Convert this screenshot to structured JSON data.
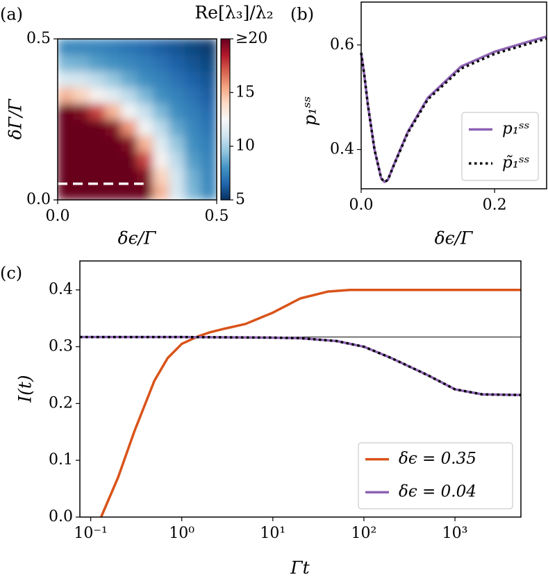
{
  "chart_data": [
    {
      "type": "heatmap",
      "panel_label": "(a)",
      "xlabel": "δϵ/Γ",
      "ylabel": "δΓ/Γ",
      "x": [
        0.025,
        0.075,
        0.125,
        0.175,
        0.225,
        0.275,
        0.325,
        0.375,
        0.425,
        0.475
      ],
      "y": [
        0.025,
        0.075,
        0.125,
        0.175,
        0.225,
        0.275,
        0.325,
        0.375,
        0.425,
        0.475
      ],
      "z": [
        [
          20,
          20,
          20,
          20,
          20,
          20,
          15.1,
          11.3,
          9.1,
          7.7
        ],
        [
          20,
          20,
          20,
          20,
          20,
          19.5,
          14.2,
          11.1,
          8.9,
          7.6
        ],
        [
          20,
          20,
          20,
          20,
          20,
          17.6,
          12.7,
          10.5,
          8.3,
          7.5
        ],
        [
          20,
          20,
          20,
          20,
          19.5,
          15.1,
          11.6,
          9.6,
          7.9,
          7.3
        ],
        [
          20,
          20,
          20,
          19.5,
          15.9,
          12.3,
          10.5,
          8.6,
          7.6,
          7.0
        ],
        [
          20,
          19.5,
          17.6,
          15.1,
          12.3,
          10.8,
          9.1,
          7.8,
          7.3,
          6.7
        ],
        [
          15.1,
          14.2,
          12.7,
          11.6,
          10.5,
          9.1,
          7.9,
          7.4,
          6.9,
          6.3
        ],
        [
          11.3,
          11.1,
          10.5,
          9.6,
          8.6,
          7.8,
          7.4,
          6.9,
          6.4,
          6.0
        ],
        [
          9.1,
          8.9,
          8.3,
          7.9,
          7.6,
          7.3,
          6.9,
          6.4,
          6.0,
          5.6
        ],
        [
          7.7,
          7.6,
          7.5,
          7.3,
          7.0,
          6.7,
          6.3,
          6.0,
          5.6,
          5.3
        ]
      ],
      "xlim": [
        0,
        0.5
      ],
      "ylim": [
        0,
        0.5
      ],
      "xticks": [
        {
          "value": 0,
          "label": "0.0"
        },
        0.5
      ],
      "yticks": [
        {
          "value": 0,
          "label": "0.0"
        },
        0.5
      ],
      "colorbar": {
        "label": "Re[λ₃]/λ₂",
        "lim": [
          5,
          20
        ],
        "ticks": [
          5,
          10,
          15,
          {
            "value": 20,
            "label": "≥20"
          }
        ],
        "colors": [
          "#053061",
          "#2166ac",
          "#4393c3",
          "#92c5de",
          "#d1e5f0",
          "#f7f7f7",
          "#fddbc7",
          "#f4a582",
          "#d6604d",
          "#b2182b",
          "#67001f"
        ]
      },
      "dashed_line": {
        "x": [
          0,
          0.27
        ],
        "y": [
          0.05,
          0.05
        ],
        "color": "#ffffff"
      }
    },
    {
      "type": "line",
      "panel_label": "(b)",
      "xlabel": "δϵ/Γ",
      "ylabel": "p₁ˢˢ",
      "series": [
        {
          "name": "p₁ˢˢ",
          "color": "#8d62b3",
          "style": "solid",
          "x": [
            0,
            0.005,
            0.01,
            0.02,
            0.03,
            0.035,
            0.04,
            0.05,
            0.07,
            0.1,
            0.15,
            0.2,
            0.25,
            0.278
          ],
          "values": [
            0.585,
            0.54,
            0.486,
            0.4,
            0.345,
            0.338,
            0.342,
            0.374,
            0.434,
            0.499,
            0.559,
            0.587,
            0.606,
            0.616
          ]
        },
        {
          "name": "p̃₁ˢˢ",
          "color": "#000000",
          "style": "dotted",
          "x": [
            0,
            0.005,
            0.01,
            0.02,
            0.03,
            0.035,
            0.04,
            0.05,
            0.07,
            0.1,
            0.15,
            0.2,
            0.25,
            0.278
          ],
          "values": [
            0.585,
            0.54,
            0.486,
            0.4,
            0.345,
            0.338,
            0.342,
            0.373,
            0.432,
            0.496,
            0.555,
            0.583,
            0.602,
            0.612
          ]
        }
      ],
      "xlim": [
        0,
        0.278
      ],
      "ylim": [
        0.325,
        0.682
      ],
      "xticks": [
        {
          "value": 0,
          "label": "0.0"
        },
        0.2
      ],
      "yticks": [
        0.4,
        0.6
      ],
      "legend": "lower right"
    },
    {
      "type": "line",
      "panel_label": "(c)",
      "xlabel": "Γt",
      "ylabel": "I(t)",
      "xscale": "log",
      "series": [
        {
          "name": "δϵ = 0.35",
          "color": "#d95319",
          "style": "solid",
          "x": [
            0.13,
            0.2,
            0.3,
            0.5,
            0.7,
            1,
            1.5,
            2,
            3,
            5,
            10,
            20,
            40,
            70,
            100,
            1000,
            5300
          ],
          "values": [
            0,
            0.07,
            0.15,
            0.24,
            0.28,
            0.305,
            0.318,
            0.325,
            0.332,
            0.34,
            0.36,
            0.385,
            0.397,
            0.4,
            0.4,
            0.4,
            0.4
          ]
        },
        {
          "name": "δϵ = 0.04",
          "color": "#8d62b3",
          "style": "solid",
          "x": [
            0.076,
            1,
            10,
            20,
            50,
            100,
            200,
            500,
            1000,
            2000,
            5300
          ],
          "values": [
            0.317,
            0.317,
            0.316,
            0.315,
            0.31,
            0.3,
            0.28,
            0.25,
            0.225,
            0.216,
            0.215
          ]
        },
        {
          "color": "#000000",
          "style": "dotted",
          "x": [
            0.076,
            1,
            10,
            20,
            50,
            100,
            200,
            500,
            1000,
            2000,
            5300
          ],
          "values": [
            0.317,
            0.317,
            0.316,
            0.315,
            0.31,
            0.3,
            0.28,
            0.25,
            0.225,
            0.216,
            0.215
          ]
        }
      ],
      "hline": {
        "y": 0.317,
        "color": "#000000"
      },
      "xlim": [
        0.076,
        5300
      ],
      "ylim": [
        0,
        0.451
      ],
      "xticks": [
        {
          "value": 0.1,
          "label": "10⁻¹"
        },
        {
          "value": 1,
          "label": "10⁰"
        },
        {
          "value": 10,
          "label": "10¹"
        },
        {
          "value": 100,
          "label": "10²"
        },
        {
          "value": 1000,
          "label": "10³"
        }
      ],
      "yticks": [
        {
          "value": 0,
          "label": "0.0"
        },
        0.1,
        0.2,
        0.3,
        0.4
      ],
      "legend": "lower right"
    }
  ]
}
